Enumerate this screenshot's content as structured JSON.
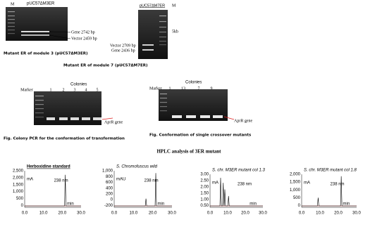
{
  "gels": [
    {
      "title": "pUC57ΔM3ER",
      "lanes": [
        "M"
      ],
      "labels": [
        "Gene 2742 bp",
        "Vector 2459 bp"
      ],
      "caption": "Mutant ER of module 3 (pUC57ΔM3ER)"
    },
    {
      "title": "pUC57ΔM7ER",
      "lanes": [
        "M"
      ],
      "labels": [
        "5kb",
        "Vector 2709 bp",
        "Gene 2436 bp"
      ],
      "caption": "Mutant ER of module 7 (pUC57ΔM7ER)"
    },
    {
      "title": "Colonies",
      "lanes": [
        "Marker",
        "1",
        "2",
        "3",
        "4",
        "5"
      ],
      "labels": [
        "AprR gene"
      ],
      "caption": "Fig. Colony PCR for the conformation of transformation"
    },
    {
      "title": "Colonies",
      "lanes": [
        "Marker",
        "1",
        "13",
        "7",
        "9"
      ],
      "labels": [
        "AprR gene"
      ],
      "caption": "Fig. Conformation of single crossover mutants"
    }
  ],
  "hplc": {
    "title": "HPLC analysis of 3ER mutant",
    "panels": [
      {
        "title": "Herboxidine standard",
        "unit": "mA",
        "wavelength": "238 nm",
        "yticks": [
          "2,500",
          "2,000",
          "1,500",
          "1,000",
          "500",
          "0"
        ],
        "xticks": [
          "0.0",
          "10.0",
          "20.0",
          "30.0"
        ],
        "xlabel": "min"
      },
      {
        "title": "S. Chromofuscus wild",
        "unit": "mAU",
        "wavelength": "238 nm",
        "yticks": [
          "1,000",
          "800",
          "600",
          "400",
          "200",
          "0",
          "-200"
        ],
        "xticks": [
          "0.0",
          "10.0",
          "20.0",
          "30.0"
        ],
        "xlabel": "min"
      },
      {
        "title": "S. chr. M3ER mutant col 1.3",
        "unit": "mA",
        "wavelength": "238 nm",
        "yticks": [
          "3.00",
          "2.50",
          "2.00",
          "1.50",
          "1.00",
          "0.50"
        ],
        "xticks": [
          "0.0",
          "10.0",
          "20.0",
          "30.0"
        ],
        "xlabel": "min"
      },
      {
        "title": "S. chr. M3ER mutant col 1.8",
        "unit": "mA",
        "wavelength": "238 nm",
        "yticks": [
          "2,000",
          "1,500",
          "1,000",
          "500",
          "0"
        ],
        "xticks": [
          "0.0",
          "10.0",
          "20.0",
          "30.0"
        ],
        "xlabel": "min"
      }
    ]
  }
}
